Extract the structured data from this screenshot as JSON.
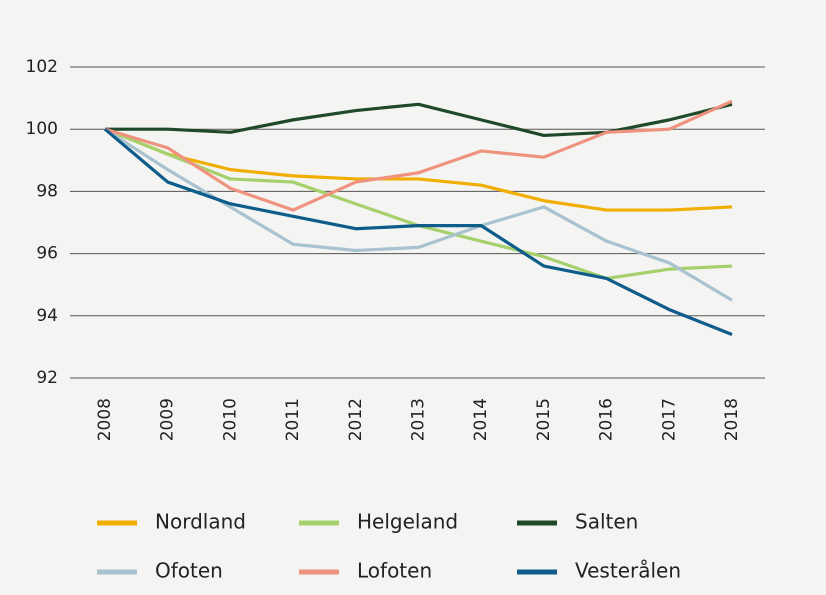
{
  "chart_data": {
    "type": "line",
    "categories": [
      "2008",
      "2009",
      "2010",
      "2011",
      "2012",
      "2013",
      "2014",
      "2015",
      "2016",
      "2017",
      "2018"
    ],
    "series": [
      {
        "name": "Nordland",
        "color": "#f0ae00",
        "values": [
          100,
          99.2,
          98.7,
          98.5,
          98.4,
          98.4,
          98.2,
          97.7,
          97.4,
          97.4,
          97.5
        ]
      },
      {
        "name": "Helgeland",
        "color": "#a6d06b",
        "values": [
          100,
          99.2,
          98.4,
          98.3,
          97.6,
          96.9,
          96.4,
          95.9,
          95.2,
          95.5,
          95.6
        ]
      },
      {
        "name": "Salten",
        "color": "#1f4a2a",
        "values": [
          100,
          100,
          99.9,
          100.3,
          100.6,
          100.8,
          100.3,
          99.8,
          99.9,
          100.3,
          100.8
        ]
      },
      {
        "name": "Ofoten",
        "color": "#a9c2d0",
        "values": [
          100,
          98.7,
          97.5,
          96.3,
          96.1,
          96.2,
          96.9,
          97.5,
          96.4,
          95.7,
          94.5
        ]
      },
      {
        "name": "Lofoten",
        "color": "#ef9380",
        "values": [
          100,
          99.4,
          98.1,
          97.4,
          98.3,
          98.6,
          99.3,
          99.1,
          99.9,
          100.0,
          100.9
        ]
      },
      {
        "name": "Vesterålen",
        "color": "#0e5c8a",
        "values": [
          100,
          98.3,
          97.6,
          97.2,
          96.8,
          96.9,
          96.9,
          95.6,
          95.2,
          94.2,
          93.4
        ]
      }
    ],
    "ylim": [
      92,
      102
    ],
    "yticks": [
      92,
      94,
      96,
      98,
      100,
      102
    ],
    "grid": true
  }
}
